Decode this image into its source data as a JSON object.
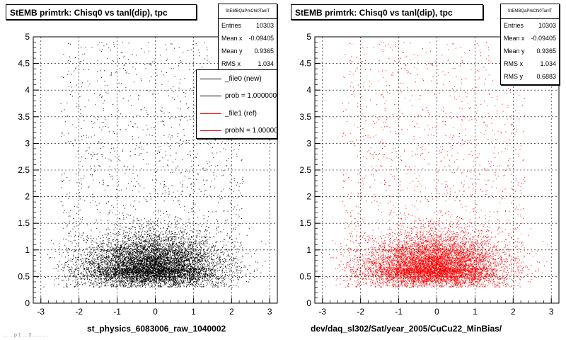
{
  "colors": {
    "ref_markers": "#000000",
    "new_markers": "#ff0000",
    "frame": "#000000",
    "grid": "#000000"
  },
  "legend": {
    "entries": [
      {
        "label": "_file0 (new)",
        "color": "#000000"
      },
      {
        "label": "prob = 1.000000",
        "color": "#000000"
      },
      {
        "label": "_file1 (ref)",
        "color": "#ff0000"
      },
      {
        "label": "probN = 1.000000",
        "color": "#ff0000"
      }
    ]
  },
  "footer_text": "… …p 1 … 2…… …",
  "chart_data": [
    {
      "type": "scatter",
      "title": "StEMB primtrk: Chisq0 vs tanl(dip), tpc",
      "xlabel": "st_physics_6083006_raw_1040002",
      "ylabel": "",
      "xlim": [
        -3.2,
        3.2
      ],
      "ylim": [
        0,
        5
      ],
      "xticks": [
        "-3",
        "-2",
        "-1",
        "0",
        "1",
        "2",
        "3"
      ],
      "yticks": [
        "0",
        "0.5",
        "1",
        "1.5",
        "2",
        "2.5",
        "3",
        "3.5",
        "4",
        "4.5",
        "5"
      ],
      "grid": true,
      "marker_color": "#000000",
      "stats": {
        "name": "StEMBQaPrkChi0TanlT",
        "rows": [
          {
            "label": "Entries",
            "value": "10303"
          },
          {
            "label": "Mean x",
            "value": "-0.09405"
          },
          {
            "label": "Mean y",
            "value": "0.9365"
          },
          {
            "label": "RMS x",
            "value": "1.034"
          }
        ]
      },
      "distribution": {
        "entries": 10303,
        "mean_x": -0.09405,
        "mean_y": 0.9365,
        "rms_x": 1.034,
        "rms_y": 0.6883
      }
    },
    {
      "type": "scatter",
      "title": "StEMB primtrk: Chisq0 vs tanl(dip), tpc",
      "xlabel": "dev/daq_sl302/Sat/year_2005/CuCu22_MinBias/",
      "ylabel": "",
      "xlim": [
        -3.2,
        3.2
      ],
      "ylim": [
        0,
        5
      ],
      "xticks": [
        "-3",
        "-2",
        "-1",
        "0",
        "1",
        "2",
        "3"
      ],
      "yticks": [
        "0",
        "0.5",
        "1",
        "1.5",
        "2",
        "2.5",
        "3",
        "3.5",
        "4",
        "4.5",
        "5"
      ],
      "grid": true,
      "marker_color": "#ff0000",
      "stats": {
        "name": "StEMBQaPrkChi0TanlT",
        "rows": [
          {
            "label": "Entries",
            "value": "10303"
          },
          {
            "label": "Mean x",
            "value": "-0.09405"
          },
          {
            "label": "Mean y",
            "value": "0.9365"
          },
          {
            "label": "RMS x",
            "value": "1.034"
          },
          {
            "label": "RMS y",
            "value": "0.6883"
          }
        ]
      },
      "distribution": {
        "entries": 10303,
        "mean_x": -0.09405,
        "mean_y": 0.9365,
        "rms_x": 1.034,
        "rms_y": 0.6883
      }
    }
  ]
}
